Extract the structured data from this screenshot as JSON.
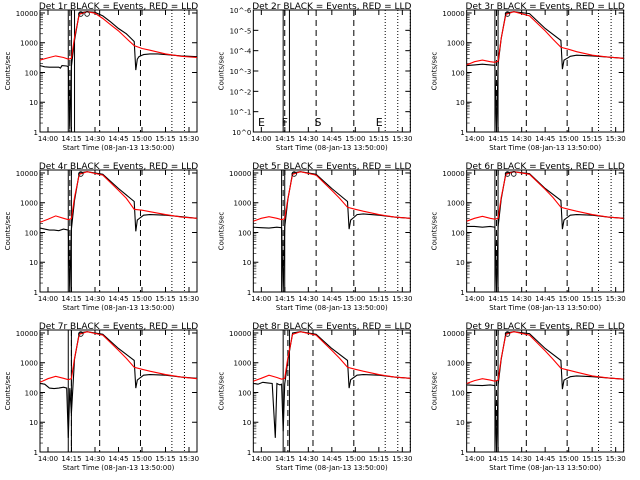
{
  "chart_data": [
    {
      "type": "line",
      "title": "Det 1r BLACK = Events, RED = LLD",
      "xlabel": "Start Time (08-Jan-13 13:50:00)",
      "ylabel": "Counts/sec",
      "xticks": [
        "14:00",
        "14:15",
        "14:30",
        "14:45",
        "15:00",
        "15:15",
        "15:30"
      ],
      "yticks": [
        "1",
        "10",
        "100",
        "1000",
        "10000"
      ],
      "yscale": "log",
      "series": [
        {
          "color": "#000000",
          "x": [
            0,
            3,
            6,
            9,
            12,
            13,
            14,
            17,
            18,
            19,
            20,
            22,
            25,
            30,
            35,
            40,
            45,
            50,
            55,
            60,
            61,
            62,
            63,
            64,
            66,
            70,
            75,
            80,
            85,
            90,
            95,
            100
          ],
          "y": [
            170,
            155,
            150,
            150,
            150,
            140,
            170,
            165,
            155,
            1.2,
            160,
            1200,
            10000,
            11000,
            10500,
            8000,
            5000,
            3000,
            2000,
            1100,
            120,
            280,
            340,
            360,
            400,
            420,
            420,
            400,
            380,
            360,
            350,
            340
          ]
        },
        {
          "color": "#ff0000",
          "x": [
            0,
            5,
            10,
            15,
            18,
            20,
            22,
            25,
            30,
            35,
            40,
            45,
            50,
            55,
            60,
            65,
            70,
            80,
            90,
            100
          ],
          "y": [
            260,
            310,
            360,
            320,
            280,
            300,
            1500,
            9000,
            11000,
            9800,
            6500,
            4000,
            2500,
            1400,
            800,
            640,
            560,
            420,
            350,
            320
          ]
        }
      ],
      "dashed_x": [
        19,
        38,
        64
      ],
      "solid_x": [
        18,
        20,
        22
      ],
      "dotted_x": [
        84,
        92,
        100
      ],
      "markers": [
        "o",
        "o"
      ]
    },
    {
      "type": "line",
      "title": "Det 2r BLACK = Events, RED = LLD",
      "xlabel": "Start Time (08-Jan-13 13:50:00)",
      "ylabel": "Counts/sec",
      "xticks": [
        "14:00",
        "14:15",
        "14:30",
        "14:45",
        "15:00",
        "15:15",
        "15:30"
      ],
      "yticks": [
        "10^0",
        "10^-1",
        "10^-2",
        "10^-3",
        "10^-4",
        "10^-5",
        "10^-6"
      ],
      "yscale": "log",
      "series": [],
      "dashed_x": [
        20,
        40,
        64
      ],
      "solid_x": [
        19,
        23
      ],
      "dotted_x": [
        84,
        92,
        100
      ],
      "labels": [
        "E",
        "F",
        "S",
        "E"
      ]
    },
    {
      "type": "line",
      "title": "Det 3r BLACK = Events, RED = LLD",
      "xlabel": "Start Time (08-Jan-13 13:50:00)",
      "ylabel": "Counts/sec",
      "xticks": [
        "14:00",
        "14:15",
        "14:30",
        "14:45",
        "15:00",
        "15:15",
        "15:30"
      ],
      "yticks": [
        "1",
        "10",
        "100",
        "1000",
        "10000"
      ],
      "yscale": "log",
      "series": [
        {
          "color": "#000000",
          "x": [
            0,
            5,
            10,
            15,
            18,
            19,
            20,
            22,
            25,
            30,
            40,
            50,
            60,
            61,
            62,
            64,
            66,
            70,
            80,
            90,
            100
          ],
          "y": [
            170,
            180,
            190,
            180,
            175,
            1,
            190,
            1400,
            10000,
            11000,
            9500,
            3000,
            1200,
            130,
            260,
            300,
            350,
            380,
            360,
            330,
            300
          ]
        },
        {
          "color": "#ff0000",
          "x": [
            0,
            5,
            10,
            15,
            18,
            20,
            22,
            25,
            30,
            40,
            50,
            55,
            60,
            65,
            70,
            80,
            90,
            100
          ],
          "y": [
            180,
            230,
            260,
            230,
            220,
            240,
            1400,
            9000,
            11000,
            8000,
            2500,
            1300,
            700,
            600,
            500,
            380,
            330,
            300
          ]
        }
      ],
      "dashed_x": [
        19,
        38,
        64
      ],
      "solid_x": [
        18,
        20
      ],
      "dotted_x": [
        84,
        92,
        100
      ],
      "markers": [
        "o"
      ]
    },
    {
      "type": "line",
      "title": "Det 4r BLACK = Events, RED = LLD",
      "xlabel": "Start Time (08-Jan-13 13:50:00)",
      "ylabel": "Counts/sec",
      "xticks": [
        "14:00",
        "14:15",
        "14:30",
        "14:45",
        "15:00",
        "15:15",
        "15:30"
      ],
      "yticks": [
        "1",
        "10",
        "100",
        "1000",
        "10000"
      ],
      "yscale": "log",
      "series": [
        {
          "color": "#000000",
          "x": [
            0,
            3,
            6,
            9,
            12,
            15,
            18,
            19,
            20,
            22,
            25,
            30,
            40,
            50,
            60,
            61,
            62,
            64,
            66,
            70,
            80,
            90,
            100
          ],
          "y": [
            140,
            130,
            120,
            120,
            115,
            130,
            120,
            1,
            130,
            1200,
            10000,
            11000,
            9000,
            3000,
            1100,
            110,
            260,
            320,
            380,
            400,
            380,
            340,
            300
          ]
        },
        {
          "color": "#ff0000",
          "x": [
            0,
            5,
            10,
            15,
            18,
            20,
            22,
            25,
            30,
            40,
            50,
            55,
            60,
            65,
            70,
            80,
            90,
            100
          ],
          "y": [
            220,
            280,
            360,
            300,
            270,
            290,
            1500,
            9000,
            11000,
            8500,
            2600,
            1400,
            600,
            560,
            500,
            400,
            330,
            300
          ]
        }
      ],
      "dashed_x": [
        19,
        38,
        64
      ],
      "solid_x": [
        18,
        20
      ],
      "dotted_x": [
        84,
        92,
        100
      ],
      "markers": [
        "o"
      ]
    },
    {
      "type": "line",
      "title": "Det 5r BLACK = Events, RED = LLD",
      "xlabel": "Start Time (08-Jan-13 13:50:00)",
      "ylabel": "Counts/sec",
      "xticks": [
        "14:00",
        "14:15",
        "14:30",
        "14:45",
        "15:00",
        "15:15",
        "15:30"
      ],
      "yticks": [
        "1",
        "10",
        "100",
        "1000",
        "10000"
      ],
      "yscale": "log",
      "series": [
        {
          "color": "#000000",
          "x": [
            0,
            5,
            10,
            15,
            18,
            19,
            20,
            22,
            25,
            30,
            40,
            50,
            60,
            61,
            62,
            64,
            66,
            70,
            80,
            90,
            100
          ],
          "y": [
            150,
            145,
            140,
            150,
            145,
            1,
            150,
            1300,
            10000,
            11000,
            9000,
            3000,
            1100,
            130,
            260,
            320,
            400,
            420,
            380,
            330,
            300
          ]
        },
        {
          "color": "#ff0000",
          "x": [
            0,
            5,
            10,
            15,
            18,
            20,
            22,
            25,
            30,
            40,
            50,
            55,
            60,
            65,
            70,
            80,
            90,
            100
          ],
          "y": [
            240,
            300,
            340,
            300,
            270,
            290,
            1400,
            9000,
            11000,
            8500,
            2600,
            1400,
            700,
            600,
            520,
            400,
            330,
            300
          ]
        }
      ],
      "dashed_x": [
        19,
        40,
        64
      ],
      "solid_x": [
        18,
        20
      ],
      "dotted_x": [
        84,
        92,
        100
      ],
      "markers": [
        "o"
      ]
    },
    {
      "type": "line",
      "title": "Det 6r BLACK = Events, RED = LLD",
      "xlabel": "Start Time (08-Jan-13 13:50:00)",
      "ylabel": "Counts/sec",
      "xticks": [
        "14:00",
        "14:15",
        "14:30",
        "14:45",
        "15:00",
        "15:15",
        "15:30"
      ],
      "yticks": [
        "1",
        "10",
        "100",
        "1000",
        "10000"
      ],
      "yscale": "log",
      "series": [
        {
          "color": "#000000",
          "x": [
            0,
            5,
            10,
            15,
            18,
            19,
            20,
            22,
            25,
            30,
            40,
            50,
            60,
            61,
            62,
            64,
            66,
            70,
            80,
            90,
            100
          ],
          "y": [
            160,
            160,
            150,
            160,
            150,
            1,
            160,
            1300,
            10000,
            11000,
            9500,
            3000,
            1200,
            130,
            260,
            320,
            380,
            400,
            380,
            330,
            300
          ]
        },
        {
          "color": "#ff0000",
          "x": [
            0,
            5,
            10,
            15,
            18,
            20,
            22,
            25,
            30,
            40,
            50,
            55,
            60,
            65,
            70,
            80,
            90,
            100
          ],
          "y": [
            240,
            300,
            350,
            300,
            280,
            300,
            1500,
            9000,
            11000,
            9000,
            2800,
            1500,
            700,
            600,
            520,
            400,
            330,
            300
          ]
        }
      ],
      "dashed_x": [
        19,
        38,
        64
      ],
      "solid_x": [
        18,
        20
      ],
      "dotted_x": [
        84,
        92,
        100
      ],
      "markers": [
        "o",
        "o"
      ]
    },
    {
      "type": "line",
      "title": "Det 7r BLACK = Events, RED = LLD",
      "xlabel": "Start Time (08-Jan-13 13:50:00)",
      "ylabel": "Counts/sec",
      "xticks": [
        "14:00",
        "14:15",
        "14:30",
        "14:45",
        "15:00",
        "15:15",
        "15:30"
      ],
      "yticks": [
        "1",
        "10",
        "100",
        "1000",
        "10000"
      ],
      "yscale": "log",
      "series": [
        {
          "color": "#000000",
          "x": [
            0,
            3,
            6,
            9,
            12,
            15,
            17,
            18,
            19,
            20,
            22,
            25,
            30,
            40,
            50,
            60,
            61,
            62,
            64,
            66,
            70,
            80,
            90,
            100
          ],
          "y": [
            200,
            190,
            140,
            135,
            140,
            150,
            140,
            3,
            140,
            20,
            1300,
            10000,
            11000,
            9000,
            3000,
            1200,
            140,
            260,
            320,
            380,
            400,
            380,
            330,
            300
          ]
        },
        {
          "color": "#ff0000",
          "x": [
            0,
            5,
            10,
            15,
            18,
            20,
            22,
            25,
            30,
            40,
            50,
            55,
            60,
            65,
            70,
            80,
            90,
            100
          ],
          "y": [
            220,
            290,
            350,
            300,
            270,
            290,
            1400,
            9000,
            11000,
            8500,
            2600,
            1400,
            700,
            600,
            520,
            400,
            330,
            290
          ]
        }
      ],
      "dashed_x": [
        20,
        38,
        64
      ],
      "solid_x": [
        18,
        20
      ],
      "dotted_x": [
        84,
        92,
        100
      ],
      "markers": [
        "o"
      ]
    },
    {
      "type": "line",
      "title": "Det 8r BLACK = Events, RED = LLD",
      "xlabel": "Start Time (08-Jan-13 13:50:00)",
      "ylabel": "Counts/sec",
      "xticks": [
        "14:00",
        "14:15",
        "14:30",
        "14:45",
        "15:00",
        "15:15",
        "15:30"
      ],
      "yticks": [
        "1",
        "10",
        "100",
        "1000",
        "10000"
      ],
      "yscale": "log",
      "series": [
        {
          "color": "#000000",
          "x": [
            0,
            3,
            6,
            9,
            12,
            14,
            15,
            16,
            17,
            18,
            19,
            20,
            22,
            25,
            30,
            40,
            50,
            60,
            61,
            62,
            64,
            66,
            70,
            80,
            90,
            100
          ],
          "y": [
            200,
            190,
            220,
            210,
            200,
            3,
            200,
            190,
            180,
            190,
            5,
            190,
            1200,
            10000,
            11000,
            9000,
            3000,
            1200,
            140,
            270,
            320,
            380,
            400,
            380,
            330,
            300
          ]
        },
        {
          "color": "#ff0000",
          "x": [
            0,
            5,
            10,
            15,
            18,
            20,
            22,
            25,
            30,
            40,
            50,
            55,
            60,
            65,
            70,
            80,
            90,
            100
          ],
          "y": [
            240,
            300,
            380,
            320,
            280,
            300,
            1500,
            9000,
            11000,
            8500,
            2600,
            1400,
            700,
            600,
            520,
            400,
            330,
            300
          ]
        }
      ],
      "dashed_x": [
        22,
        38,
        64
      ],
      "solid_x": [
        19,
        23
      ],
      "dotted_x": [
        84,
        92,
        100
      ],
      "markers": []
    },
    {
      "type": "line",
      "title": "Det 9r BLACK = Events, RED = LLD",
      "xlabel": "Start Time (08-Jan-13 13:50:00)",
      "ylabel": "Counts/sec",
      "xticks": [
        "14:00",
        "14:15",
        "14:30",
        "14:45",
        "15:00",
        "15:15",
        "15:30"
      ],
      "yticks": [
        "1",
        "10",
        "100",
        "1000",
        "10000"
      ],
      "yscale": "log",
      "series": [
        {
          "color": "#000000",
          "x": [
            0,
            5,
            10,
            15,
            18,
            19,
            20,
            22,
            25,
            30,
            40,
            50,
            60,
            61,
            62,
            64,
            66,
            70,
            80,
            90,
            100
          ],
          "y": [
            180,
            175,
            170,
            180,
            170,
            1,
            180,
            1300,
            10000,
            11000,
            9500,
            3000,
            1200,
            130,
            260,
            300,
            340,
            360,
            340,
            310,
            280
          ]
        },
        {
          "color": "#ff0000",
          "x": [
            0,
            5,
            10,
            15,
            18,
            20,
            22,
            25,
            30,
            40,
            50,
            55,
            60,
            65,
            70,
            80,
            90,
            100
          ],
          "y": [
            200,
            250,
            290,
            260,
            240,
            260,
            1400,
            9000,
            11000,
            8500,
            2500,
            1300,
            650,
            560,
            480,
            360,
            310,
            280
          ]
        }
      ],
      "dashed_x": [
        19,
        38,
        64
      ],
      "solid_x": [
        18,
        20
      ],
      "dotted_x": [
        84,
        92,
        100
      ],
      "markers": [
        "o"
      ]
    }
  ]
}
